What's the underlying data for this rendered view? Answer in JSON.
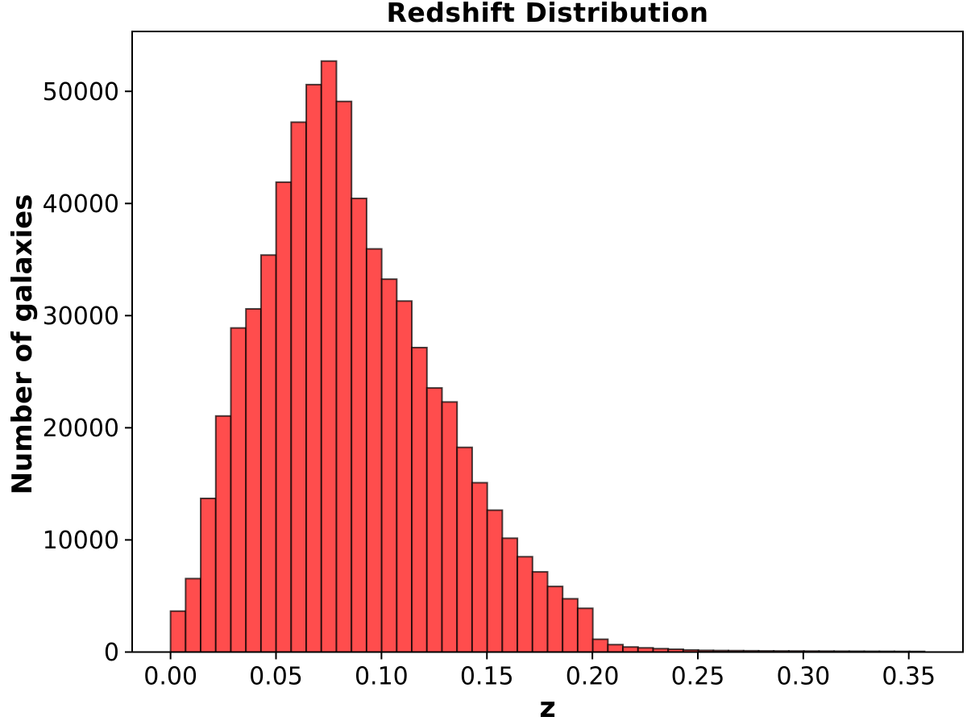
{
  "chart_data": {
    "type": "bar",
    "subtype": "histogram",
    "title": "Redshift Distribution",
    "xlabel": "z",
    "ylabel": "Number of galaxies",
    "bin_start": 0.0,
    "bin_width": 0.00715,
    "counts": [
      3650,
      6550,
      13700,
      21050,
      28900,
      30600,
      35400,
      41900,
      47250,
      50600,
      52700,
      49100,
      40450,
      35950,
      33250,
      31300,
      27150,
      23550,
      22300,
      18250,
      15100,
      12650,
      10150,
      8500,
      7150,
      5850,
      4750,
      3900,
      1140,
      660,
      450,
      375,
      300,
      250,
      185,
      150,
      135,
      125,
      115,
      105,
      100,
      95,
      90,
      85,
      80,
      75,
      70,
      65,
      60,
      55
    ],
    "xlim": [
      -0.0182,
      0.3757
    ],
    "ylim": [
      0,
      55340
    ],
    "xticks": [
      {
        "v": 0.0,
        "label": "0.00"
      },
      {
        "v": 0.05,
        "label": "0.05"
      },
      {
        "v": 0.1,
        "label": "0.10"
      },
      {
        "v": 0.15,
        "label": "0.15"
      },
      {
        "v": 0.2,
        "label": "0.20"
      },
      {
        "v": 0.25,
        "label": "0.25"
      },
      {
        "v": 0.3,
        "label": "0.30"
      },
      {
        "v": 0.35,
        "label": "0.35"
      }
    ],
    "yticks": [
      {
        "v": 0,
        "label": "0"
      },
      {
        "v": 10000,
        "label": "10000"
      },
      {
        "v": 20000,
        "label": "20000"
      },
      {
        "v": 30000,
        "label": "30000"
      },
      {
        "v": 40000,
        "label": "40000"
      },
      {
        "v": 50000,
        "label": "50000"
      }
    ],
    "bar_color": "#ff4d4d",
    "bar_edge_color": "#000000",
    "bar_edge_opacity": 0.7,
    "axis_color": "#000000",
    "background_color": "#ffffff",
    "grid": false,
    "legend": null
  }
}
